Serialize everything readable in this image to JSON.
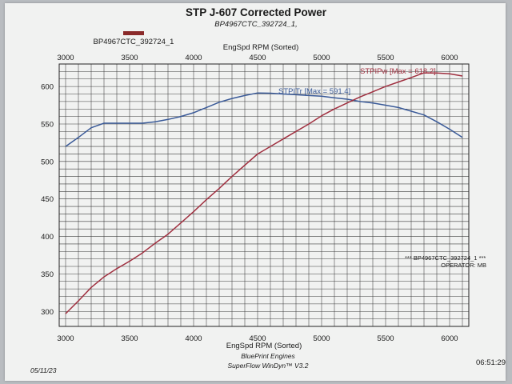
{
  "chart_data": {
    "type": "line",
    "title": "STP J-607 Corrected Power",
    "subtitle": "BP4967CTC_392724_1,",
    "legend": [
      {
        "label": "BP4967CTC_392724_1",
        "color": "#8a2a2a"
      }
    ],
    "xlabel_top": "EngSpd RPM   (Sorted)",
    "xlabel_bottom": "EngSpd RPM   (Sorted)",
    "xlim": [
      2950,
      6150
    ],
    "ylim": [
      280,
      630
    ],
    "x_ticks": [
      3000,
      3500,
      4000,
      4500,
      5000,
      5500,
      6000
    ],
    "y_ticks": [
      300,
      350,
      400,
      450,
      500,
      550,
      600
    ],
    "grid": true,
    "series": [
      {
        "name": "STPITr",
        "color": "#3a5a98",
        "annotation": "STPITr [Max = 591.4]",
        "points": [
          [
            3000,
            520
          ],
          [
            3100,
            532
          ],
          [
            3200,
            545
          ],
          [
            3300,
            551
          ],
          [
            3400,
            551
          ],
          [
            3500,
            551
          ],
          [
            3600,
            551
          ],
          [
            3700,
            553
          ],
          [
            3800,
            556
          ],
          [
            3900,
            560
          ],
          [
            4000,
            565
          ],
          [
            4100,
            572
          ],
          [
            4200,
            579
          ],
          [
            4300,
            584
          ],
          [
            4400,
            588
          ],
          [
            4500,
            591.4
          ],
          [
            4600,
            591
          ],
          [
            4700,
            590
          ],
          [
            4800,
            589
          ],
          [
            4900,
            588
          ],
          [
            5000,
            587
          ],
          [
            5100,
            585
          ],
          [
            5200,
            583
          ],
          [
            5300,
            580
          ],
          [
            5400,
            578
          ],
          [
            5500,
            575
          ],
          [
            5600,
            572
          ],
          [
            5700,
            567
          ],
          [
            5800,
            562
          ],
          [
            5900,
            553
          ],
          [
            6000,
            543
          ],
          [
            6100,
            532
          ]
        ]
      },
      {
        "name": "STPIPw",
        "color": "#a03040",
        "annotation": "STPIPw [Max = 618.2]",
        "points": [
          [
            3000,
            297
          ],
          [
            3100,
            314
          ],
          [
            3200,
            332
          ],
          [
            3300,
            346
          ],
          [
            3400,
            357
          ],
          [
            3500,
            367
          ],
          [
            3600,
            378
          ],
          [
            3700,
            391
          ],
          [
            3800,
            403
          ],
          [
            3900,
            418
          ],
          [
            4000,
            433
          ],
          [
            4100,
            449
          ],
          [
            4200,
            464
          ],
          [
            4300,
            480
          ],
          [
            4400,
            495
          ],
          [
            4500,
            510
          ],
          [
            4600,
            520
          ],
          [
            4700,
            530
          ],
          [
            4800,
            540
          ],
          [
            4900,
            550
          ],
          [
            5000,
            561
          ],
          [
            5100,
            570
          ],
          [
            5200,
            578
          ],
          [
            5300,
            586
          ],
          [
            5400,
            593
          ],
          [
            5500,
            600
          ],
          [
            5600,
            606
          ],
          [
            5700,
            612
          ],
          [
            5800,
            618.2
          ],
          [
            5900,
            618
          ],
          [
            6000,
            617
          ],
          [
            6100,
            614
          ]
        ]
      }
    ],
    "annotations": [
      "*** BP4967CTC_392724_1 ***",
      "OPERATOR: MB"
    ]
  },
  "footer": {
    "company": "BluePrint Engines",
    "software": "SuperFlow WinDyn™ V3.2",
    "date": "05/11/23",
    "time": "06:51:29"
  }
}
